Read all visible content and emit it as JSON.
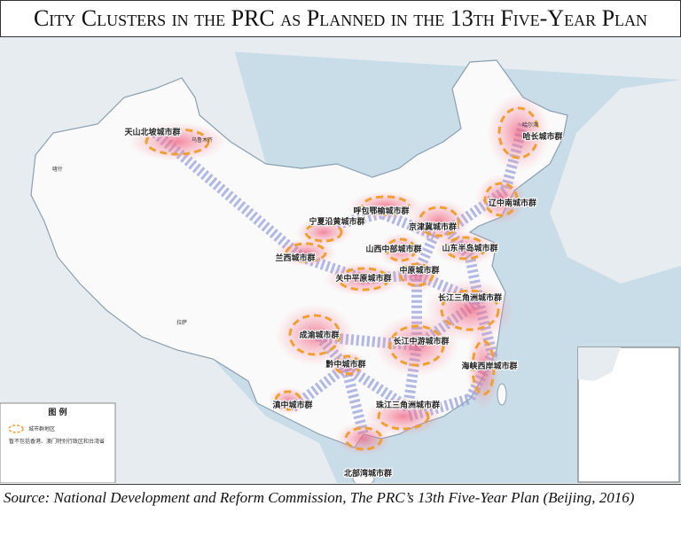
{
  "title": "City Clusters in the PRC as Planned in the 13th Five-Year Plan",
  "map": {
    "labels": [
      "天山北坡城市群",
      "乌鲁木齐",
      "喀什",
      "哈长城市群",
      "哈尔滨",
      "辽中南城市群",
      "呼包鄂榆城市群",
      "宁夏沿黄城市群",
      "京津冀城市群",
      "兰西城市群",
      "山西中部城市群",
      "山东半岛城市群",
      "中原城市群",
      "关中平原城市群",
      "长江三角洲城市群",
      "成渝城市群",
      "长江中游城市群",
      "海峡西岸城市群",
      "黔中城市群",
      "滇中城市群",
      "珠江三角洲城市群",
      "北部湾城市群",
      "拉萨"
    ],
    "legend": {
      "title": "图 例",
      "item": "城市群地区",
      "note": "暂不包括香港、澳门特别行政区和台湾省"
    }
  },
  "source": "Source: National Development and Reform Commission, The PRC’s 13th Five-Year Plan (Beijing, 2016)"
}
